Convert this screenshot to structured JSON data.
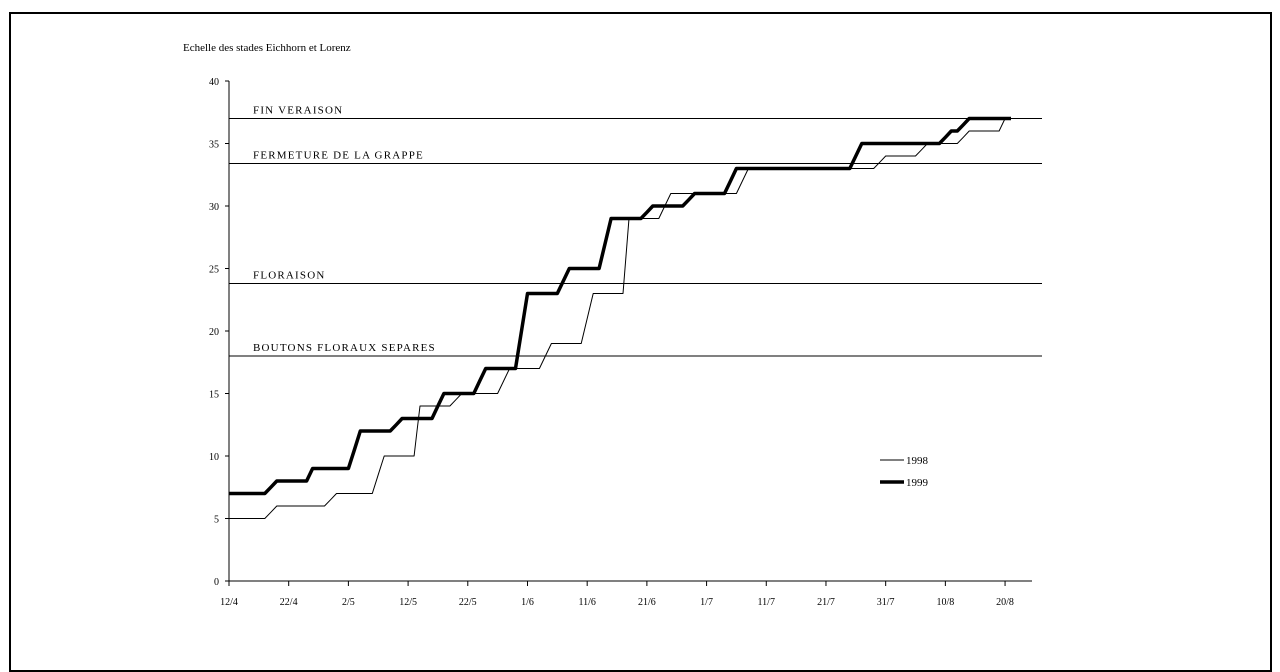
{
  "chart_data": {
    "type": "line",
    "title": "",
    "ylabel": "Echelle des stades Eichhorn et Lorenz",
    "xlabel": "",
    "ylim": [
      0,
      40
    ],
    "yticks": [
      0,
      5,
      10,
      15,
      20,
      25,
      30,
      35,
      40
    ],
    "x_day_range": [
      0,
      132
    ],
    "xticks": [
      {
        "day": 0,
        "label": "12/4"
      },
      {
        "day": 10,
        "label": "22/4"
      },
      {
        "day": 20,
        "label": "2/5"
      },
      {
        "day": 30,
        "label": "12/5"
      },
      {
        "day": 40,
        "label": "22/5"
      },
      {
        "day": 50,
        "label": "1/6"
      },
      {
        "day": 60,
        "label": "11/6"
      },
      {
        "day": 70,
        "label": "21/6"
      },
      {
        "day": 80,
        "label": "1/7"
      },
      {
        "day": 90,
        "label": "11/7"
      },
      {
        "day": 100,
        "label": "21/7"
      },
      {
        "day": 110,
        "label": "31/7"
      },
      {
        "day": 120,
        "label": "10/8"
      },
      {
        "day": 130,
        "label": "20/8"
      }
    ],
    "reference_lines": [
      {
        "label": "FIN VERAISON",
        "y": 37
      },
      {
        "label": "FERMETURE DE LA GRAPPE",
        "y": 33.4
      },
      {
        "label": "FLORAISON",
        "y": 23.8
      },
      {
        "label": "BOUTONS FLORAUX SEPARES",
        "y": 18
      }
    ],
    "series": [
      {
        "name": "1998",
        "style": "thin",
        "color": "#000000",
        "points": [
          [
            0,
            5
          ],
          [
            2,
            5
          ],
          [
            4,
            5
          ],
          [
            6,
            5
          ],
          [
            7,
            5.5
          ],
          [
            8,
            6
          ],
          [
            10,
            6
          ],
          [
            12,
            6
          ],
          [
            14,
            6
          ],
          [
            16,
            6
          ],
          [
            17,
            6.5
          ],
          [
            18,
            7
          ],
          [
            20,
            7
          ],
          [
            22,
            7
          ],
          [
            24,
            7
          ],
          [
            25,
            8.5
          ],
          [
            26,
            10
          ],
          [
            28,
            10
          ],
          [
            30,
            10
          ],
          [
            31,
            10
          ],
          [
            31.5,
            12
          ],
          [
            32,
            14
          ],
          [
            34,
            14
          ],
          [
            36,
            14
          ],
          [
            37,
            14
          ],
          [
            38,
            14.5
          ],
          [
            39,
            15
          ],
          [
            41,
            15
          ],
          [
            43,
            15
          ],
          [
            45,
            15
          ],
          [
            46,
            16
          ],
          [
            47,
            17
          ],
          [
            49,
            17
          ],
          [
            51,
            17
          ],
          [
            52,
            17
          ],
          [
            53,
            18
          ],
          [
            54,
            19
          ],
          [
            56,
            19
          ],
          [
            58,
            19
          ],
          [
            59,
            19
          ],
          [
            60,
            21
          ],
          [
            61,
            23
          ],
          [
            63,
            23
          ],
          [
            65,
            23
          ],
          [
            66,
            23
          ],
          [
            66.5,
            26
          ],
          [
            67,
            29
          ],
          [
            69,
            29
          ],
          [
            71,
            29
          ],
          [
            72,
            29
          ],
          [
            73,
            30
          ],
          [
            74,
            31
          ],
          [
            76,
            31
          ],
          [
            78,
            31
          ],
          [
            79,
            31
          ],
          [
            80,
            31
          ],
          [
            82,
            31
          ],
          [
            84,
            31
          ],
          [
            85,
            31
          ],
          [
            86,
            32
          ],
          [
            87,
            33
          ],
          [
            89,
            33
          ],
          [
            91,
            33
          ],
          [
            93,
            33
          ],
          [
            95,
            33
          ],
          [
            97,
            33
          ],
          [
            99,
            33
          ],
          [
            101,
            33
          ],
          [
            103,
            33
          ],
          [
            104,
            33
          ],
          [
            105,
            33
          ],
          [
            106,
            33
          ],
          [
            107,
            33
          ],
          [
            108,
            33
          ],
          [
            109,
            33.5
          ],
          [
            110,
            34
          ],
          [
            112,
            34
          ],
          [
            114,
            34
          ],
          [
            115,
            34
          ],
          [
            116,
            34.5
          ],
          [
            117,
            35
          ],
          [
            119,
            35
          ],
          [
            121,
            35
          ],
          [
            122,
            35
          ],
          [
            123,
            35.5
          ],
          [
            124,
            36
          ],
          [
            126,
            36
          ],
          [
            128,
            36
          ],
          [
            129,
            36
          ],
          [
            130,
            37
          ],
          [
            131,
            37
          ]
        ]
      },
      {
        "name": "1999",
        "style": "thick",
        "color": "#000000",
        "points": [
          [
            0,
            7
          ],
          [
            2,
            7
          ],
          [
            4,
            7
          ],
          [
            6,
            7
          ],
          [
            7,
            7.5
          ],
          [
            8,
            8
          ],
          [
            10,
            8
          ],
          [
            12,
            8
          ],
          [
            13,
            8
          ],
          [
            14,
            9
          ],
          [
            16,
            9
          ],
          [
            18,
            9
          ],
          [
            20,
            9
          ],
          [
            21,
            10.5
          ],
          [
            22,
            12
          ],
          [
            24,
            12
          ],
          [
            26,
            12
          ],
          [
            27,
            12
          ],
          [
            28,
            12.5
          ],
          [
            29,
            13
          ],
          [
            31,
            13
          ],
          [
            33,
            13
          ],
          [
            34,
            13
          ],
          [
            35,
            14
          ],
          [
            36,
            15
          ],
          [
            38,
            15
          ],
          [
            40,
            15
          ],
          [
            41,
            15
          ],
          [
            42,
            16
          ],
          [
            43,
            17
          ],
          [
            45,
            17
          ],
          [
            47,
            17
          ],
          [
            48,
            17
          ],
          [
            49,
            20
          ],
          [
            50,
            23
          ],
          [
            52,
            23
          ],
          [
            54,
            23
          ],
          [
            55,
            23
          ],
          [
            56,
            24
          ],
          [
            57,
            25
          ],
          [
            59,
            25
          ],
          [
            61,
            25
          ],
          [
            62,
            25
          ],
          [
            63,
            27
          ],
          [
            64,
            29
          ],
          [
            66,
            29
          ],
          [
            68,
            29
          ],
          [
            69,
            29
          ],
          [
            70,
            29.5
          ],
          [
            71,
            30
          ],
          [
            73,
            30
          ],
          [
            75,
            30
          ],
          [
            76,
            30
          ],
          [
            77,
            30.5
          ],
          [
            78,
            31
          ],
          [
            80,
            31
          ],
          [
            82,
            31
          ],
          [
            83,
            31
          ],
          [
            84,
            32
          ],
          [
            85,
            33
          ],
          [
            87,
            33
          ],
          [
            89,
            33
          ],
          [
            91,
            33
          ],
          [
            93,
            33
          ],
          [
            95,
            33
          ],
          [
            97,
            33
          ],
          [
            99,
            33
          ],
          [
            101,
            33
          ],
          [
            103,
            33
          ],
          [
            104,
            33
          ],
          [
            105,
            34
          ],
          [
            106,
            35
          ],
          [
            108,
            35
          ],
          [
            110,
            35
          ],
          [
            112,
            35
          ],
          [
            114,
            35
          ],
          [
            116,
            35
          ],
          [
            118,
            35
          ],
          [
            119,
            35
          ],
          [
            120,
            35.5
          ],
          [
            121,
            36
          ],
          [
            122,
            36
          ],
          [
            123,
            36.5
          ],
          [
            124,
            37
          ],
          [
            126,
            37
          ],
          [
            128,
            37
          ],
          [
            130,
            37
          ],
          [
            131,
            37
          ]
        ]
      }
    ],
    "legend": {
      "placement": "right",
      "entries": [
        {
          "label": "1998",
          "style": "thin"
        },
        {
          "label": "1999",
          "style": "thick"
        }
      ]
    },
    "grid": false
  }
}
